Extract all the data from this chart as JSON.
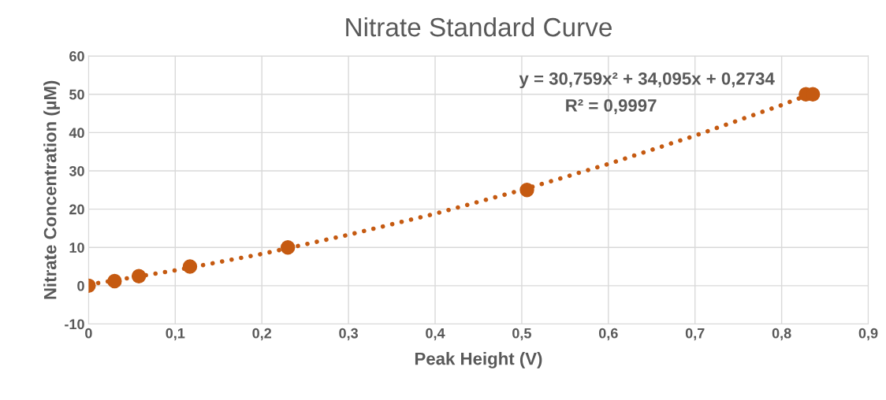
{
  "chart_data": {
    "type": "scatter",
    "title": "Nitrate Standard Curve",
    "xlabel": "Peak Height (V)",
    "ylabel": "Nitrate Concentration (µM)",
    "series": [
      {
        "color": "#c55a11",
        "marker": "circle",
        "x": [
          0,
          0.03,
          0.058,
          0.117,
          0.23,
          0.506,
          0.828,
          0.836
        ],
        "values": [
          0,
          1.2,
          2.5,
          5,
          10,
          25,
          50,
          50
        ]
      },
      {
        "type": "line",
        "color": "#c55a11",
        "marker": "none",
        "line_style": "dotted",
        "x": [
          0,
          0.1,
          0.2,
          0.3,
          0.4,
          0.5,
          0.6,
          0.7,
          0.8,
          0.836
        ],
        "values": [
          0.3,
          4,
          8.3,
          13.3,
          18.8,
          25,
          31.8,
          39.2,
          47.2,
          50.3
        ]
      }
    ],
    "annotations": [
      "y = 30,759x² + 34,095x + 0,2734",
      "R² = 0,9997"
    ],
    "xlim": [
      0,
      0.9
    ],
    "xticks": [
      0,
      {
        "value": 0.1,
        "label": "0,1"
      },
      {
        "value": 0.2,
        "label": "0,2"
      },
      {
        "value": 0.3,
        "label": "0,3"
      },
      {
        "value": 0.4,
        "label": "0,4"
      },
      {
        "value": 0.5,
        "label": "0,5"
      },
      {
        "value": 0.6,
        "label": "0,6"
      },
      {
        "value": 0.7,
        "label": "0,7"
      },
      {
        "value": 0.8,
        "label": "0,8"
      },
      {
        "value": 0.9,
        "label": "0,9"
      }
    ],
    "ylim": [
      -10,
      60
    ],
    "yticks": [
      -10,
      0,
      10,
      20,
      30,
      40,
      50,
      60
    ],
    "grid": true,
    "legend": false
  }
}
